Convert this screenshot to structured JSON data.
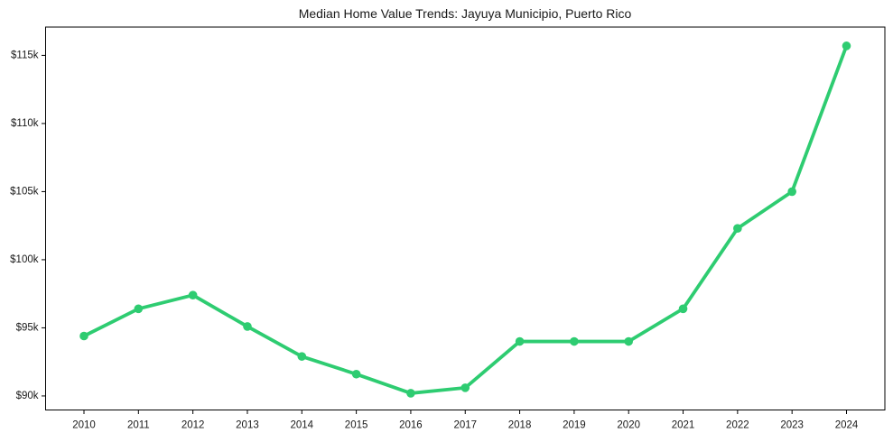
{
  "page": {
    "background_color": "#ffffff"
  },
  "colors": {
    "line": "#2ecc71",
    "marker": "#2ecc71",
    "spine": "#000000",
    "text": "#191919",
    "plot_background": "#ffffff"
  },
  "chart_data": {
    "type": "line",
    "title": "Median Home Value Trends: Jayuya Municipio, Puerto Rico",
    "xlabel": "",
    "ylabel": "",
    "x": [
      2010,
      2011,
      2012,
      2013,
      2014,
      2015,
      2016,
      2017,
      2018,
      2019,
      2020,
      2021,
      2022,
      2023,
      2024
    ],
    "x_tick_labels": [
      "2010",
      "2011",
      "2012",
      "2013",
      "2014",
      "2015",
      "2016",
      "2017",
      "2018",
      "2019",
      "2020",
      "2021",
      "2022",
      "2023",
      "2024"
    ],
    "values": [
      94400,
      96400,
      97400,
      95100,
      92900,
      91600,
      90200,
      90600,
      94000,
      94000,
      94000,
      96400,
      102300,
      105000,
      115700
    ],
    "y_ticks": [
      {
        "value": 90000,
        "label": "$90k"
      },
      {
        "value": 95000,
        "label": "$95k"
      },
      {
        "value": 100000,
        "label": "$100k"
      },
      {
        "value": 105000,
        "label": "$105k"
      },
      {
        "value": 110000,
        "label": "$110k"
      },
      {
        "value": 115000,
        "label": "$115k"
      }
    ],
    "ylim_thousands": [
      88.97,
      117.08
    ],
    "grid": false,
    "legend": "none",
    "marker_style": "circle",
    "line_color": "#2ecc71"
  }
}
